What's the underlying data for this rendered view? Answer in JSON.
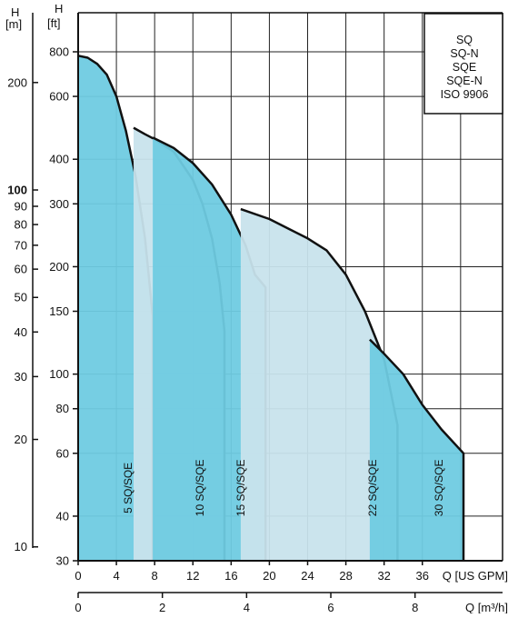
{
  "chart_data": {
    "type": "area",
    "title": "",
    "legend": [
      "SQ",
      "SQ-N",
      "SQE",
      "SQE-N",
      "ISO 9906"
    ],
    "legend_position": "top-right",
    "grid": true,
    "x_axis_gpm": {
      "label": "Q [US GPM]",
      "range": [
        0,
        40
      ],
      "ticks": [
        "0",
        "4",
        "8",
        "12",
        "16",
        "20",
        "24",
        "28",
        "32",
        "36"
      ]
    },
    "x_axis_m3h": {
      "label": "Q [m³/h]",
      "range": [
        0,
        9.09
      ],
      "ticks": [
        "0",
        "2",
        "4",
        "6",
        "8"
      ]
    },
    "y_axis_ft": {
      "label_top": "H",
      "label_unit": "[ft]",
      "scale": "log",
      "range": [
        30,
        900
      ],
      "ticks": [
        "30",
        "40",
        "60",
        "80",
        "100",
        "150",
        "200",
        "300",
        "400",
        "600",
        "800"
      ]
    },
    "y_axis_m": {
      "label_top": "H",
      "label_unit": "[m]",
      "scale": "log",
      "ticks": [
        "10",
        "20",
        "30",
        "40",
        "50",
        "60",
        "70",
        "80",
        "90",
        "100",
        "200"
      ],
      "bold_ticks": [
        "100"
      ]
    },
    "series": [
      {
        "name": "5 SQ/SQE",
        "color": "#6fcbe2",
        "label_h_ft": 48,
        "points": [
          [
            0,
            780
          ],
          [
            1,
            770
          ],
          [
            2,
            740
          ],
          [
            3,
            690
          ],
          [
            4,
            600
          ],
          [
            5,
            480
          ],
          [
            6,
            360
          ],
          [
            7,
            240
          ],
          [
            7.8,
            145
          ],
          [
            7.8,
            30
          ]
        ]
      },
      {
        "name": "10 SQ/SQE",
        "color": "#c8e3ec",
        "label_h_ft": 48,
        "points": [
          [
            5.8,
            490
          ],
          [
            7,
            470
          ],
          [
            8,
            455
          ],
          [
            10,
            420
          ],
          [
            12,
            350
          ],
          [
            13,
            300
          ],
          [
            14,
            240
          ],
          [
            14.8,
            180
          ],
          [
            15.3,
            132
          ],
          [
            15.3,
            30
          ]
        ]
      },
      {
        "name": "15 SQ/SQE",
        "color": "#6fcbe2",
        "label_h_ft": 48,
        "points": [
          [
            7.8,
            460
          ],
          [
            10,
            430
          ],
          [
            12,
            390
          ],
          [
            14,
            340
          ],
          [
            16,
            280
          ],
          [
            17.5,
            230
          ],
          [
            18.5,
            190
          ],
          [
            19.6,
            175
          ],
          [
            19.6,
            30
          ]
        ]
      },
      {
        "name": "22 SQ/SQE",
        "color": "#c8e3ec",
        "label_h_ft": 48,
        "points": [
          [
            17,
            290
          ],
          [
            20,
            272
          ],
          [
            24,
            240
          ],
          [
            26,
            222
          ],
          [
            28,
            190
          ],
          [
            30,
            150
          ],
          [
            32,
            110
          ],
          [
            33.4,
            72
          ],
          [
            33.4,
            30
          ]
        ]
      },
      {
        "name": "30 SQ/SQE",
        "color": "#6fcbe2",
        "label_h_ft": 48,
        "points": [
          [
            30.5,
            125
          ],
          [
            32,
            114
          ],
          [
            34,
            100
          ],
          [
            36,
            82
          ],
          [
            38,
            70
          ],
          [
            40.3,
            60
          ],
          [
            40.3,
            30
          ]
        ]
      }
    ]
  }
}
